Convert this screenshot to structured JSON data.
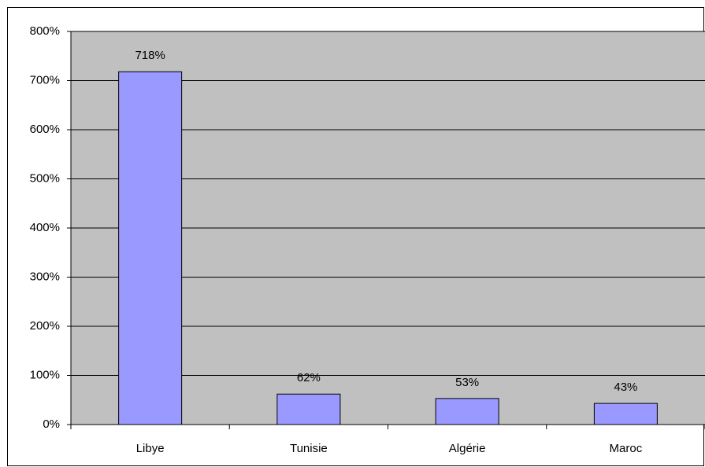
{
  "chart_data": {
    "type": "bar",
    "categories": [
      "Libye",
      "Tunisie",
      "Algérie",
      "Maroc"
    ],
    "values": [
      718,
      62,
      53,
      43
    ],
    "value_labels": [
      "718%",
      "62%",
      "53%",
      "43%"
    ],
    "color": "#9999ff",
    "ylim": [
      0,
      800
    ],
    "yticks": [
      {
        "value": 0,
        "label": "0%"
      },
      {
        "value": 100,
        "label": "100%"
      },
      {
        "value": 200,
        "label": "200%"
      },
      {
        "value": 300,
        "label": "300%"
      },
      {
        "value": 400,
        "label": "400%"
      },
      {
        "value": 500,
        "label": "500%"
      },
      {
        "value": 600,
        "label": "600%"
      },
      {
        "value": 700,
        "label": "700%"
      },
      {
        "value": 800,
        "label": "800%"
      }
    ],
    "grid": true
  }
}
